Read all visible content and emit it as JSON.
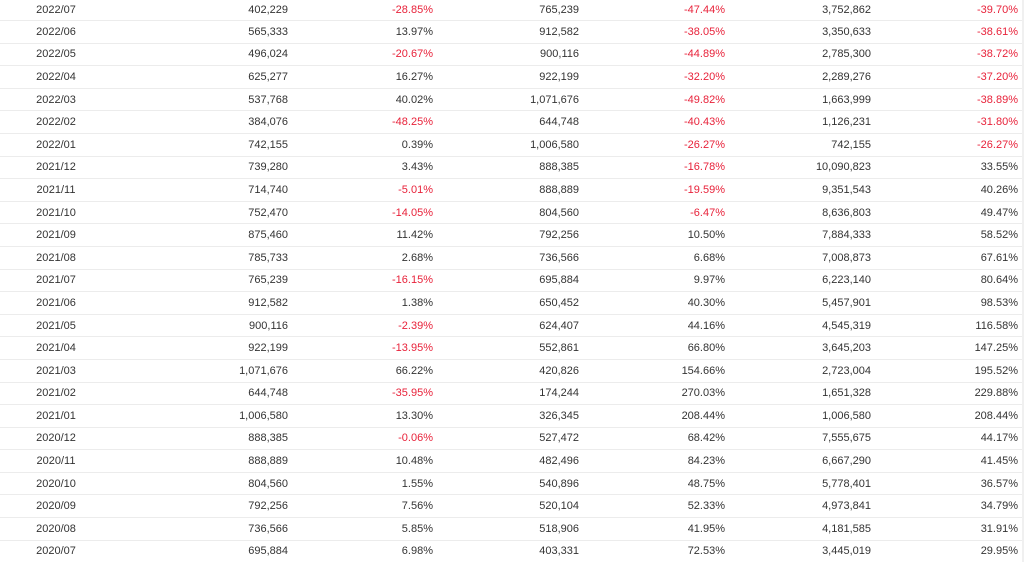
{
  "rows": [
    {
      "month": "2022/07",
      "v1": "402,229",
      "p1": "-28.85%",
      "v2": "765,239",
      "p2": "-47.44%",
      "v3": "3,752,862",
      "p3": "-39.70%"
    },
    {
      "month": "2022/06",
      "v1": "565,333",
      "p1": "13.97%",
      "v2": "912,582",
      "p2": "-38.05%",
      "v3": "3,350,633",
      "p3": "-38.61%"
    },
    {
      "month": "2022/05",
      "v1": "496,024",
      "p1": "-20.67%",
      "v2": "900,116",
      "p2": "-44.89%",
      "v3": "2,785,300",
      "p3": "-38.72%"
    },
    {
      "month": "2022/04",
      "v1": "625,277",
      "p1": "16.27%",
      "v2": "922,199",
      "p2": "-32.20%",
      "v3": "2,289,276",
      "p3": "-37.20%"
    },
    {
      "month": "2022/03",
      "v1": "537,768",
      "p1": "40.02%",
      "v2": "1,071,676",
      "p2": "-49.82%",
      "v3": "1,663,999",
      "p3": "-38.89%"
    },
    {
      "month": "2022/02",
      "v1": "384,076",
      "p1": "-48.25%",
      "v2": "644,748",
      "p2": "-40.43%",
      "v3": "1,126,231",
      "p3": "-31.80%"
    },
    {
      "month": "2022/01",
      "v1": "742,155",
      "p1": "0.39%",
      "v2": "1,006,580",
      "p2": "-26.27%",
      "v3": "742,155",
      "p3": "-26.27%"
    },
    {
      "month": "2021/12",
      "v1": "739,280",
      "p1": "3.43%",
      "v2": "888,385",
      "p2": "-16.78%",
      "v3": "10,090,823",
      "p3": "33.55%"
    },
    {
      "month": "2021/11",
      "v1": "714,740",
      "p1": "-5.01%",
      "v2": "888,889",
      "p2": "-19.59%",
      "v3": "9,351,543",
      "p3": "40.26%"
    },
    {
      "month": "2021/10",
      "v1": "752,470",
      "p1": "-14.05%",
      "v2": "804,560",
      "p2": "-6.47%",
      "v3": "8,636,803",
      "p3": "49.47%"
    },
    {
      "month": "2021/09",
      "v1": "875,460",
      "p1": "11.42%",
      "v2": "792,256",
      "p2": "10.50%",
      "v3": "7,884,333",
      "p3": "58.52%"
    },
    {
      "month": "2021/08",
      "v1": "785,733",
      "p1": "2.68%",
      "v2": "736,566",
      "p2": "6.68%",
      "v3": "7,008,873",
      "p3": "67.61%"
    },
    {
      "month": "2021/07",
      "v1": "765,239",
      "p1": "-16.15%",
      "v2": "695,884",
      "p2": "9.97%",
      "v3": "6,223,140",
      "p3": "80.64%"
    },
    {
      "month": "2021/06",
      "v1": "912,582",
      "p1": "1.38%",
      "v2": "650,452",
      "p2": "40.30%",
      "v3": "5,457,901",
      "p3": "98.53%"
    },
    {
      "month": "2021/05",
      "v1": "900,116",
      "p1": "-2.39%",
      "v2": "624,407",
      "p2": "44.16%",
      "v3": "4,545,319",
      "p3": "116.58%"
    },
    {
      "month": "2021/04",
      "v1": "922,199",
      "p1": "-13.95%",
      "v2": "552,861",
      "p2": "66.80%",
      "v3": "3,645,203",
      "p3": "147.25%"
    },
    {
      "month": "2021/03",
      "v1": "1,071,676",
      "p1": "66.22%",
      "v2": "420,826",
      "p2": "154.66%",
      "v3": "2,723,004",
      "p3": "195.52%"
    },
    {
      "month": "2021/02",
      "v1": "644,748",
      "p1": "-35.95%",
      "v2": "174,244",
      "p2": "270.03%",
      "v3": "1,651,328",
      "p3": "229.88%"
    },
    {
      "month": "2021/01",
      "v1": "1,006,580",
      "p1": "13.30%",
      "v2": "326,345",
      "p2": "208.44%",
      "v3": "1,006,580",
      "p3": "208.44%"
    },
    {
      "month": "2020/12",
      "v1": "888,385",
      "p1": "-0.06%",
      "v2": "527,472",
      "p2": "68.42%",
      "v3": "7,555,675",
      "p3": "44.17%"
    },
    {
      "month": "2020/11",
      "v1": "888,889",
      "p1": "10.48%",
      "v2": "482,496",
      "p2": "84.23%",
      "v3": "6,667,290",
      "p3": "41.45%"
    },
    {
      "month": "2020/10",
      "v1": "804,560",
      "p1": "1.55%",
      "v2": "540,896",
      "p2": "48.75%",
      "v3": "5,778,401",
      "p3": "36.57%"
    },
    {
      "month": "2020/09",
      "v1": "792,256",
      "p1": "7.56%",
      "v2": "520,104",
      "p2": "52.33%",
      "v3": "4,973,841",
      "p3": "34.79%"
    },
    {
      "month": "2020/08",
      "v1": "736,566",
      "p1": "5.85%",
      "v2": "518,906",
      "p2": "41.95%",
      "v3": "4,181,585",
      "p3": "31.91%"
    },
    {
      "month": "2020/07",
      "v1": "695,884",
      "p1": "6.98%",
      "v2": "403,331",
      "p2": "72.53%",
      "v3": "3,445,019",
      "p3": "29.95%"
    }
  ],
  "colors": {
    "negative": "#e8223a",
    "text": "#333333",
    "divider": "#ececec"
  }
}
